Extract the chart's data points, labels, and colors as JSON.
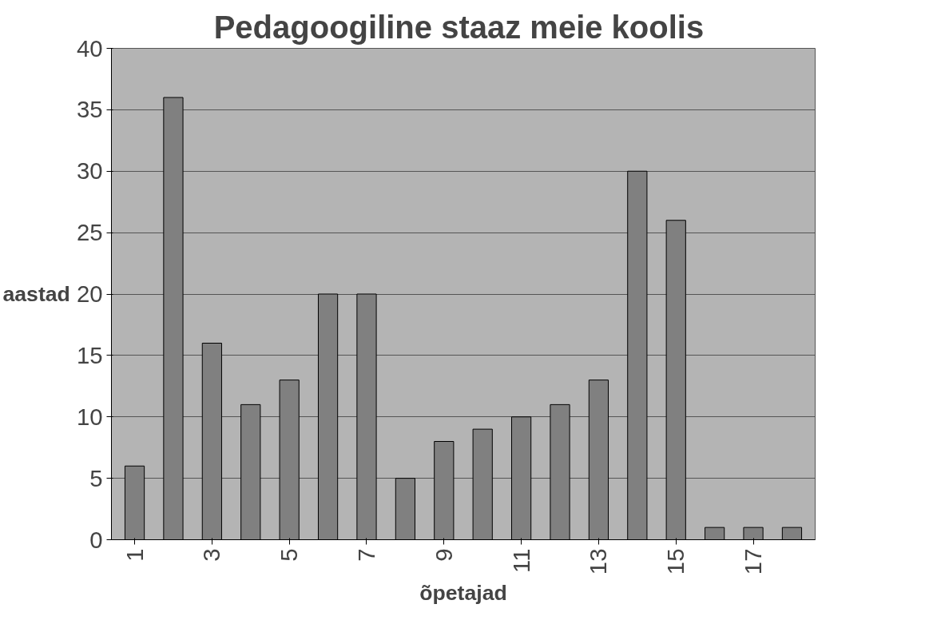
{
  "chart_data": {
    "type": "bar",
    "title": "Pedagoogiline staaz  meie koolis",
    "xlabel": "õpetajad",
    "ylabel": "aastad",
    "categories": [
      "1",
      null,
      "3",
      null,
      "5",
      null,
      "7",
      null,
      "9",
      null,
      "11",
      null,
      "13",
      null,
      "15",
      null,
      "17",
      null
    ],
    "values": [
      6,
      36,
      16,
      11,
      13,
      20,
      20,
      5,
      8,
      9,
      10,
      11,
      13,
      30,
      26,
      1,
      1,
      1
    ],
    "color": "#808080",
    "ylim": [
      0,
      40
    ],
    "yticks": [
      0,
      5,
      10,
      15,
      20,
      25,
      30,
      35,
      40
    ],
    "grid": "y"
  }
}
